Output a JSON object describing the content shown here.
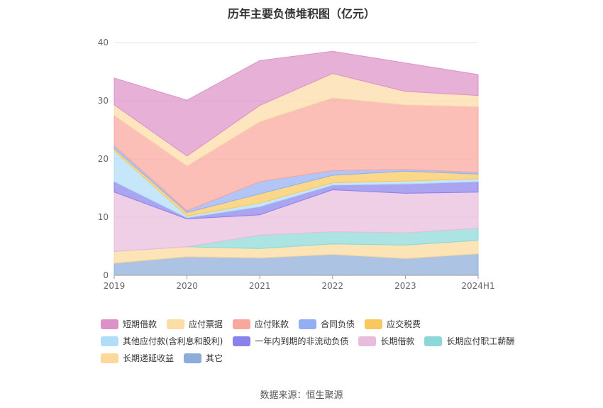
{
  "chart_data": {
    "type": "area",
    "title": "历年主要负债堆积图（亿元）",
    "categories": [
      "2019",
      "2020",
      "2021",
      "2022",
      "2023",
      "2024H1"
    ],
    "ylim": [
      0,
      40
    ],
    "yticks": [
      0,
      10,
      20,
      30,
      40
    ],
    "grid": true,
    "legend_position": "bottom",
    "series": [
      {
        "name": "其它",
        "color": "#8EACDA",
        "values": [
          2.1,
          3.2,
          3.0,
          3.6,
          2.9,
          3.7
        ]
      },
      {
        "name": "长期递延收益",
        "color": "#FCD99A",
        "values": [
          2.0,
          1.7,
          1.6,
          1.8,
          2.3,
          2.3
        ]
      },
      {
        "name": "长期应付职工薪酬",
        "color": "#8CD8D8",
        "values": [
          0.0,
          0.0,
          2.3,
          2.1,
          2.1,
          2.1
        ]
      },
      {
        "name": "长期借款",
        "color": "#E8BCDC",
        "values": [
          10.2,
          4.8,
          3.5,
          7.2,
          6.8,
          6.2
        ]
      },
      {
        "name": "一年内到期的非流动负债",
        "color": "#8A82EC",
        "values": [
          1.8,
          0.2,
          1.4,
          0.8,
          1.6,
          1.8
        ]
      },
      {
        "name": "其他应付款(含利息和股利)",
        "color": "#B0DEF8",
        "values": [
          5.3,
          0.3,
          0.6,
          0.4,
          0.5,
          0.5
        ]
      },
      {
        "name": "应交税费",
        "color": "#F8C85C",
        "values": [
          0.4,
          0.6,
          1.6,
          1.3,
          1.7,
          0.8
        ]
      },
      {
        "name": "合同负债",
        "color": "#94AEF4",
        "values": [
          0.5,
          0.3,
          2.1,
          0.8,
          0.3,
          0.3
        ]
      },
      {
        "name": "应付账款",
        "color": "#F9A69C",
        "values": [
          5.2,
          7.7,
          10.3,
          12.5,
          11.1,
          11.3
        ]
      },
      {
        "name": "应付票据",
        "color": "#FCDDA6",
        "values": [
          1.8,
          1.7,
          2.8,
          4.2,
          2.3,
          1.9
        ]
      },
      {
        "name": "短期借款",
        "color": "#DC92C8",
        "values": [
          4.6,
          9.6,
          7.7,
          3.8,
          4.9,
          3.6
        ]
      }
    ],
    "legend_order": [
      "短期借款",
      "应付票据",
      "应付账款",
      "合同负债",
      "应交税费",
      "其他应付款(含利息和股利)",
      "一年内到期的非流动负债",
      "长期借款",
      "长期应付职工薪酬",
      "长期递延收益",
      "其它"
    ],
    "source": "数据来源：恒生聚源"
  }
}
